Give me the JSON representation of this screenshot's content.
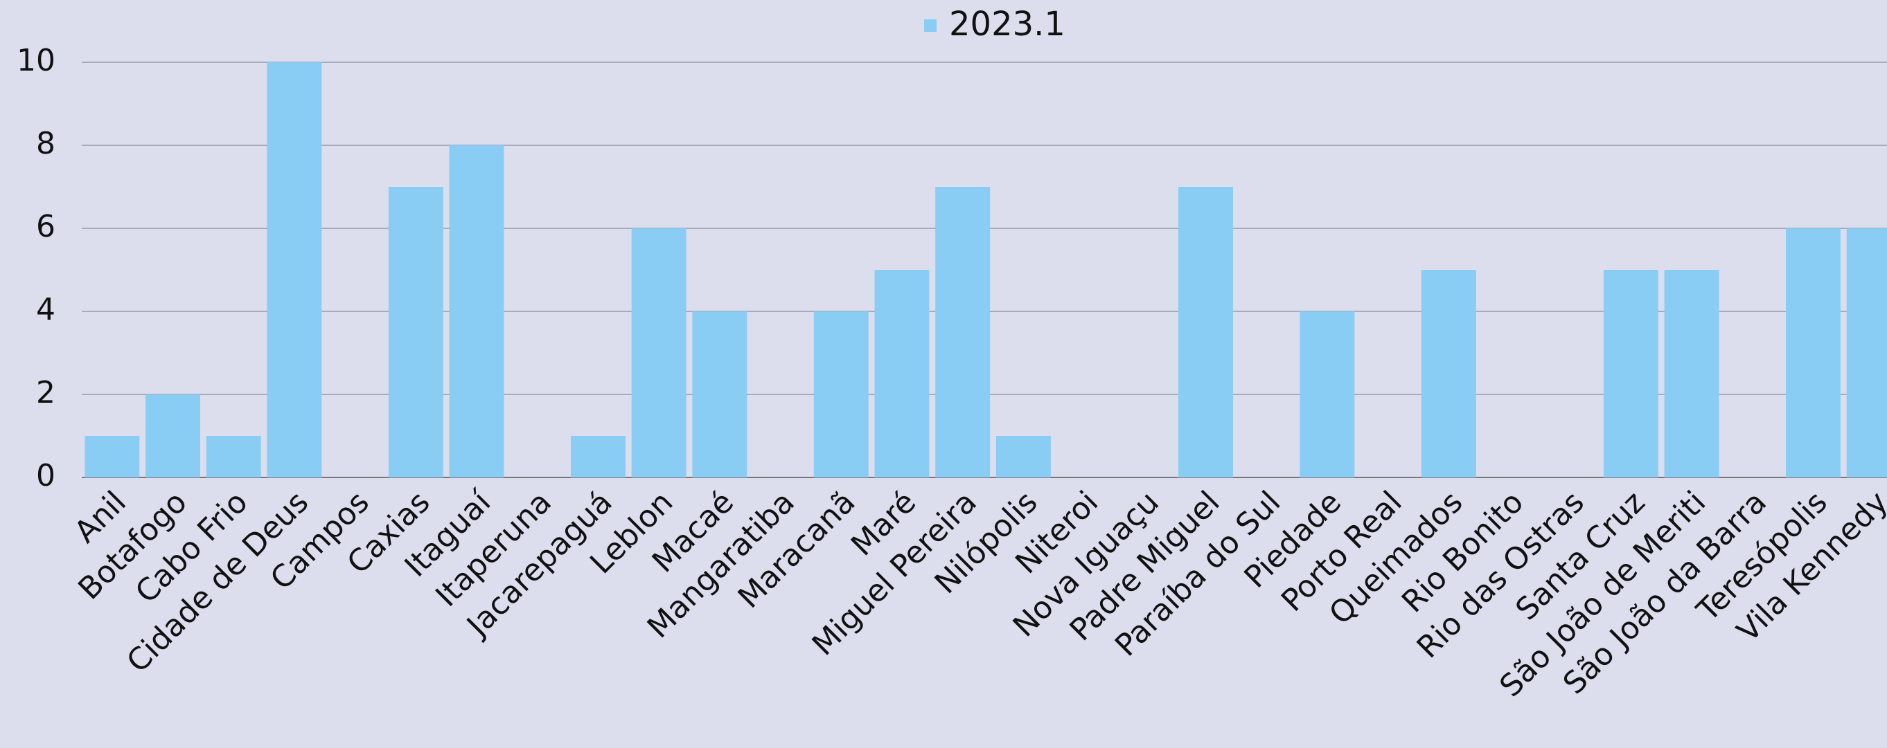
{
  "chart_data": {
    "type": "bar",
    "categories": [
      "Anil",
      "Botafogo",
      "Cabo Frio",
      "Cidade de Deus",
      "Campos",
      "Caxias",
      "Itaguaí",
      "Itaperuna",
      "Jacarepaguá",
      "Leblon",
      "Macaé",
      "Mangaratiba",
      "Maracanã",
      "Maré",
      "Miguel Pereira",
      "Nilópolis",
      "Niteroi",
      "Nova Iguaçu",
      "Padre Miguel",
      "Paraíba do Sul",
      "Piedade",
      "Porto Real",
      "Queimados",
      "Rio Bonito",
      "Rio das Ostras",
      "Santa Cruz",
      "São João de Meriti",
      "São João da Barra",
      "Teresópolis",
      "Vila Kennedy"
    ],
    "series": [
      {
        "name": "2023.1",
        "color": "#89cdf4",
        "values": [
          1,
          2,
          1,
          10,
          0,
          7,
          8,
          0,
          1,
          6,
          4,
          0,
          4,
          5,
          7,
          1,
          0,
          0,
          7,
          0,
          4,
          0,
          5,
          0,
          0,
          5,
          5,
          0,
          6,
          6
        ]
      }
    ],
    "ylim": [
      0,
      10
    ],
    "yticks": [
      0,
      2,
      4,
      6,
      8,
      10
    ],
    "grid": true,
    "legend": "top"
  }
}
